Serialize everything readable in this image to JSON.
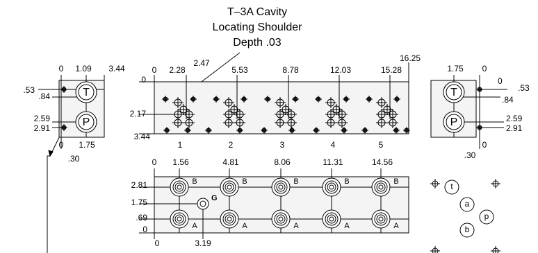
{
  "callout": [
    "T–3A Cavity",
    "Locating Shoulder",
    "Depth .03"
  ],
  "left_view": {
    "top_dims": [
      "0",
      "1.09",
      "3.44"
    ],
    "side_dims": [
      ".53",
      ".84",
      "2.59",
      "2.91"
    ],
    "bottom_dims": [
      "0",
      "1.75",
      ".30"
    ],
    "ports": [
      "T",
      "P"
    ]
  },
  "top_view": {
    "top_dims": [
      "0",
      "2.28",
      "2.47",
      "5.53",
      "8.78",
      "12.03",
      "15.28",
      "16.25"
    ],
    "side_dims": [
      "0",
      "2.17",
      "3.44"
    ],
    "stations": [
      "1",
      "2",
      "3",
      "4",
      "5"
    ]
  },
  "right_view": {
    "top_dims": [
      "1.75",
      "0"
    ],
    "side_dims": [
      "0",
      ".53",
      ".84",
      "2.59",
      "2.91"
    ],
    "bottom_dims": [
      "0",
      ".30"
    ],
    "ports": [
      "T",
      "P"
    ]
  },
  "bottom_view": {
    "top_dims": [
      "0",
      "1.56",
      "4.81",
      "8.06",
      "11.31",
      "14.56"
    ],
    "side_dims": [
      "2.81",
      "1.75",
      ".69",
      "0"
    ],
    "bottom_dims": [
      "0",
      "3.19"
    ],
    "port_b": "B",
    "port_a": "A",
    "port_g": "G"
  },
  "legend": [
    "t",
    "a",
    "p",
    "b"
  ]
}
